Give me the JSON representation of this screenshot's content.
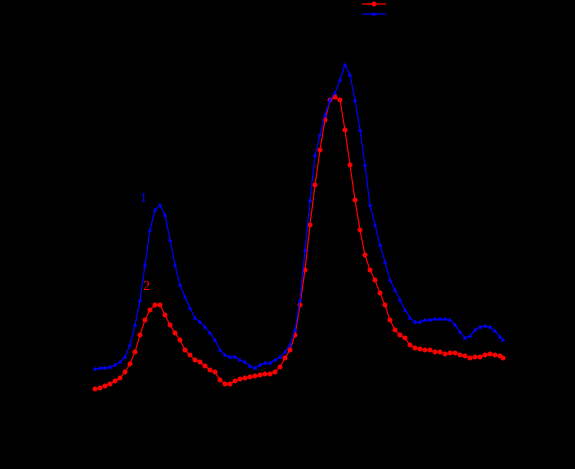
{
  "chart_data": {
    "type": "line",
    "annotations": [
      "1",
      "2"
    ],
    "x": [
      0,
      5,
      10,
      15,
      20,
      25,
      30,
      35,
      40,
      45,
      50,
      55,
      60,
      65,
      70,
      75,
      80,
      85,
      90,
      95,
      100,
      105,
      110,
      115,
      120,
      125,
      130,
      135,
      140,
      145,
      150,
      155,
      160,
      165,
      170,
      175,
      180,
      185,
      190,
      195,
      200,
      205,
      210,
      215,
      220,
      225,
      230,
      235,
      240,
      245,
      250,
      255,
      260,
      265,
      270,
      275,
      280,
      285,
      290,
      295,
      300,
      305,
      310,
      315,
      320,
      325,
      330,
      335,
      340,
      345,
      350,
      355,
      360,
      365,
      370,
      375,
      380,
      385,
      390,
      395,
      400,
      405,
      408
    ],
    "xlim": [
      0,
      408
    ],
    "ylim": [
      0,
      360
    ],
    "series": [
      {
        "color": "#ff0000",
        "marker": "circle",
        "values": [
          31,
          32,
          34,
          36,
          39,
          42,
          48,
          56,
          68,
          85,
          100,
          110,
          115,
          115,
          105,
          95,
          87,
          80,
          70,
          65,
          60,
          58,
          54,
          50,
          48,
          40,
          36,
          36,
          39,
          41,
          42,
          43,
          44,
          45,
          46,
          46,
          48,
          53,
          62,
          70,
          85,
          115,
          150,
          195,
          235,
          270,
          300,
          320,
          323,
          320,
          290,
          255,
          220,
          190,
          165,
          150,
          140,
          127,
          115,
          100,
          90,
          85,
          82,
          75,
          72,
          71,
          70,
          70,
          68,
          68,
          66,
          67,
          67,
          65,
          64,
          62,
          63,
          63,
          65,
          66,
          65,
          64,
          62
        ]
      },
      {
        "color": "#0000ff",
        "marker": "triangle",
        "values": [
          51,
          52,
          52,
          53,
          55,
          58,
          63,
          75,
          95,
          120,
          155,
          190,
          210,
          215,
          205,
          180,
          155,
          135,
          123,
          112,
          102,
          98,
          93,
          87,
          80,
          70,
          65,
          63,
          63,
          60,
          58,
          54,
          52,
          55,
          57,
          57,
          60,
          63,
          68,
          75,
          90,
          120,
          170,
          220,
          265,
          285,
          305,
          320,
          327,
          340,
          355,
          345,
          320,
          290,
          255,
          215,
          195,
          175,
          158,
          140,
          130,
          120,
          110,
          102,
          98,
          98,
          100,
          100,
          101,
          101,
          101,
          100,
          95,
          88,
          82,
          84,
          90,
          93,
          94,
          93,
          89,
          83,
          80
        ]
      }
    ]
  }
}
